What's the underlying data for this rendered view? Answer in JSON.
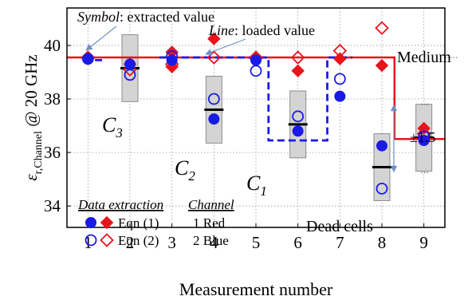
{
  "chart_data": {
    "type": "scatter",
    "xlabel": "Measurement number",
    "ylabel": {
      "main": "ε",
      "sub": "r,Channel",
      "suffix": " @ 20 GHz"
    },
    "xlim": [
      0.5,
      9.5
    ],
    "ylim": [
      33.2,
      41.4
    ],
    "xticks": [
      "1",
      "2",
      "3",
      "4",
      "5",
      "6",
      "7",
      "8",
      "9"
    ],
    "yticks": [
      "34",
      "36",
      "38",
      "40"
    ],
    "ytick_values": [
      34,
      36,
      38,
      40
    ],
    "grid": true,
    "colors": {
      "red": "#e8141c",
      "blue": "#1a1ae6",
      "box": "#d4d4d4"
    },
    "boxes": [
      {
        "x": 2,
        "low": 37.9,
        "high": 40.4,
        "mean": 39.15
      },
      {
        "x": 4,
        "low": 36.35,
        "high": 38.85,
        "mean": 37.6
      },
      {
        "x": 6,
        "low": 35.8,
        "high": 38.3,
        "mean": 37.05
      },
      {
        "x": 8,
        "low": 34.2,
        "high": 36.7,
        "mean": 35.45
      },
      {
        "x": 9,
        "low": 35.3,
        "high": 37.8,
        "mean": 36.55
      }
    ],
    "series": [
      {
        "name": "Eqn (1) Red",
        "marker": "diamond",
        "fill": true,
        "color": "red",
        "points": [
          [
            1,
            39.5
          ],
          [
            2,
            39.3
          ],
          [
            3,
            39.75
          ],
          [
            3,
            39.2
          ],
          [
            4,
            40.25
          ],
          [
            5,
            39.5
          ],
          [
            6,
            39.05
          ],
          [
            7,
            39.5
          ],
          [
            8,
            39.25
          ],
          [
            9,
            36.9
          ]
        ]
      },
      {
        "name": "Eqn (2) Red",
        "marker": "diamond",
        "fill": false,
        "color": "red",
        "points": [
          [
            1,
            39.55
          ],
          [
            2,
            39.1
          ],
          [
            3,
            39.3
          ],
          [
            4,
            39.55
          ],
          [
            5,
            39.55
          ],
          [
            6,
            39.55
          ],
          [
            7,
            39.8
          ],
          [
            8,
            40.65
          ],
          [
            9,
            36.7
          ]
        ]
      },
      {
        "name": "Eqn (1) Blue",
        "marker": "circle",
        "fill": true,
        "color": "blue",
        "points": [
          [
            1,
            39.5
          ],
          [
            2,
            39.3
          ],
          [
            3,
            39.45
          ],
          [
            4,
            37.25
          ],
          [
            5,
            39.45
          ],
          [
            6,
            36.8
          ],
          [
            7,
            38.1
          ],
          [
            8,
            36.25
          ],
          [
            9,
            36.45
          ]
        ]
      },
      {
        "name": "Eqn (2) Blue",
        "marker": "circle",
        "fill": false,
        "color": "blue",
        "points": [
          [
            1,
            39.5
          ],
          [
            2,
            38.9
          ],
          [
            3,
            39.6
          ],
          [
            4,
            38.0
          ],
          [
            5,
            39.05
          ],
          [
            6,
            37.35
          ],
          [
            7,
            38.75
          ],
          [
            8,
            34.65
          ],
          [
            9,
            36.6
          ]
        ]
      }
    ],
    "loaded_lines": {
      "red": {
        "x": [
          0.5,
          8.3,
          8.3,
          9.5
        ],
        "y": [
          39.55,
          39.55,
          36.5,
          36.5
        ]
      },
      "blue": {
        "x": [
          0.9,
          1.4,
          null,
          2.7,
          5.3,
          5.3,
          6.7,
          6.7,
          7.3
        ],
        "y": [
          39.45,
          39.45,
          null,
          39.55,
          39.55,
          36.45,
          36.45,
          39.55,
          39.55
        ]
      }
    },
    "reference_lines": [
      {
        "y": 39.55,
        "x_from": 9.5,
        "label": "Medium"
      },
      {
        "y": 37.8,
        "x_from": 9.1
      },
      {
        "y": 35.25,
        "x_from": 9.1
      }
    ],
    "range_annotation": {
      "label": "±1.5",
      "y_low": 35.25,
      "y_high": 37.8
    },
    "annotations": {
      "symbol_italic": "Symbol",
      "symbol_rest": ": extracted value",
      "line_italic": "Line",
      "line_rest": ": loaded value",
      "C3": {
        "main": "C",
        "sub": "3"
      },
      "C2": {
        "main": "C",
        "sub": "2"
      },
      "C1": {
        "main": "C",
        "sub": "1"
      },
      "dead_cells": "Dead cells"
    },
    "legend": {
      "data_title": "Data extraction",
      "eqn1": "Eqn (1)",
      "eqn2": "Eqn (2)",
      "channel_title": "Channel",
      "ch1": "1 Red",
      "ch2": "2 Blue",
      "placement": "bottom-left"
    }
  }
}
